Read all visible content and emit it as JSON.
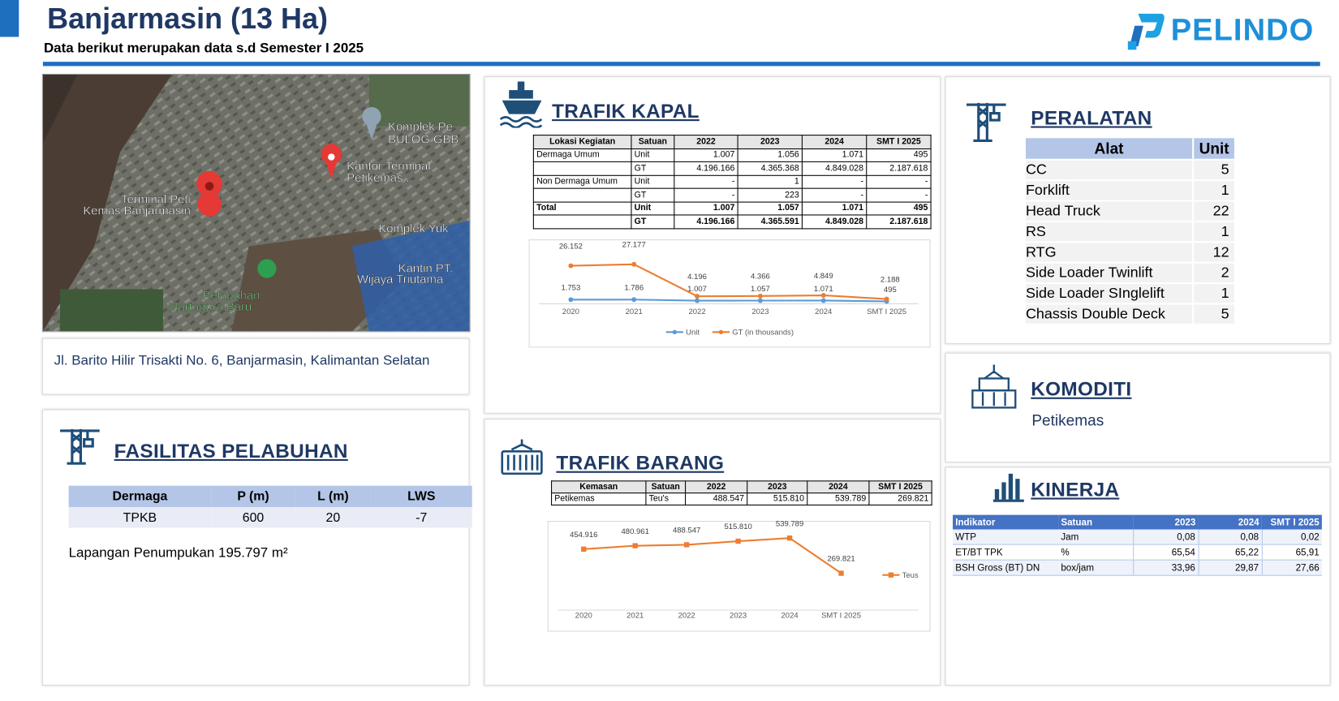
{
  "header": {
    "title": "Banjarmasin (13 Ha)",
    "subtitle": "Data berikut merupakan data s.d Semester I 2025",
    "logo": "PELINDO"
  },
  "map": {
    "labels": [
      "Komplek Pe",
      "BULOG GBB",
      "Kantor Terminal",
      "Petikemas...",
      "Terminal Peti",
      "Kemas Banjarmasin",
      "Komplek Yuk",
      "Kantin PT.",
      "Wijaya Triutama",
      "Pelabuhan",
      "Martapura Baru"
    ]
  },
  "address": "Jl. Barito Hilir Trisakti No. 6, Banjarmasin, Kalimantan Selatan",
  "fasilitas": {
    "title": "FASILITAS PELABUHAN",
    "table": {
      "header": [
        "Dermaga",
        "P (m)",
        "L (m)",
        "LWS"
      ],
      "rows": [
        [
          "TPKB",
          "600",
          "20",
          "-7"
        ]
      ]
    },
    "note": "Lapangan Penumpukan 195.797 m²"
  },
  "trafik_kapal": {
    "title": "TRAFIK KAPAL",
    "table": {
      "header": [
        "Lokasi Kegiatan",
        "Satuan",
        "2022",
        "2023",
        "2024",
        "SMT I 2025"
      ],
      "rows": [
        [
          "Dermaga Umum",
          "Unit",
          "1.007",
          "1.056",
          "1.071",
          "495"
        ],
        [
          null,
          "GT",
          "4.196.166",
          "4.365.368",
          "4.849.028",
          "2.187.618"
        ],
        [
          "Non Dermaga Umum",
          "Unit",
          "-",
          "1",
          "-",
          "-"
        ],
        [
          null,
          "GT",
          "-",
          "223",
          "-",
          "-"
        ],
        [
          "Total",
          "Unit",
          "1.007",
          "1.057",
          "1.071",
          "495"
        ],
        [
          null,
          "GT",
          "4.196.166",
          "4.365.591",
          "4.849.028",
          "2.187.618"
        ]
      ]
    }
  },
  "trafik_barang": {
    "title": "TRAFIK BARANG",
    "table": {
      "header": [
        "Kemasan",
        "Satuan",
        "2022",
        "2023",
        "2024",
        "SMT I 2025"
      ],
      "rows": [
        [
          "Petikemas",
          "Teu's",
          "488.547",
          "515.810",
          "539.789",
          "269.821"
        ]
      ]
    }
  },
  "chart_data": [
    {
      "type": "line",
      "categories": [
        "2020",
        "2021",
        "2022",
        "2023",
        "2024",
        "SMT I 2025"
      ],
      "legend": "bottom",
      "marker": "circle",
      "series": [
        {
          "name": "Unit",
          "color": "#5b9bd5",
          "values": [
            1753,
            1786,
            1007,
            1057,
            1071,
            495
          ],
          "value_labels": [
            "1.753",
            "1.786",
            "1.007",
            "1.057",
            "1.071",
            "495"
          ]
        },
        {
          "name": "GT (in thousands)",
          "color": "#ed7d31",
          "values": [
            26152,
            27177,
            4196,
            4366,
            4849,
            2188
          ],
          "value_labels": [
            "26.152",
            "27.177",
            "4.196",
            "4.366",
            "4.849",
            "2.188"
          ]
        }
      ]
    },
    {
      "type": "line",
      "categories": [
        "2020",
        "2021",
        "2022",
        "2023",
        "2024",
        "SMT I 2025"
      ],
      "legend": "right",
      "marker": "square",
      "series": [
        {
          "name": "Teus",
          "color": "#ed7d31",
          "values": [
            454916,
            480961,
            488547,
            515810,
            539789,
            269821
          ],
          "value_labels": [
            "454.916",
            "480.961",
            "488.547",
            "515.810",
            "539.789",
            "269.821"
          ]
        }
      ]
    }
  ],
  "peralatan": {
    "title": "PERALATAN",
    "table": {
      "header": [
        "Alat",
        "Unit"
      ],
      "rows": [
        [
          "CC",
          "5"
        ],
        [
          "Forklift",
          "1"
        ],
        [
          "Head Truck",
          "22"
        ],
        [
          "RS",
          "1"
        ],
        [
          "RTG",
          "12"
        ],
        [
          "Side Loader Twinlift",
          "2"
        ],
        [
          "Side Loader SInglelift",
          "1"
        ],
        [
          "Chassis Double Deck",
          "5"
        ]
      ]
    }
  },
  "komoditi": {
    "title": "KOMODITI",
    "value": "Petikemas"
  },
  "kinerja": {
    "title": "KINERJA",
    "table": {
      "header": [
        "Indikator",
        "Satuan",
        "2023",
        "2024",
        "SMT I 2025"
      ],
      "rows": [
        [
          "WTP",
          "Jam",
          "0,08",
          "0,08",
          "0,02"
        ],
        [
          "ET/BT TPK",
          "%",
          "65,54",
          "65,22",
          "65,91"
        ],
        [
          "BSH Gross (BT) DN",
          "box/jam",
          "33,96",
          "29,87",
          "27,66"
        ]
      ]
    }
  }
}
